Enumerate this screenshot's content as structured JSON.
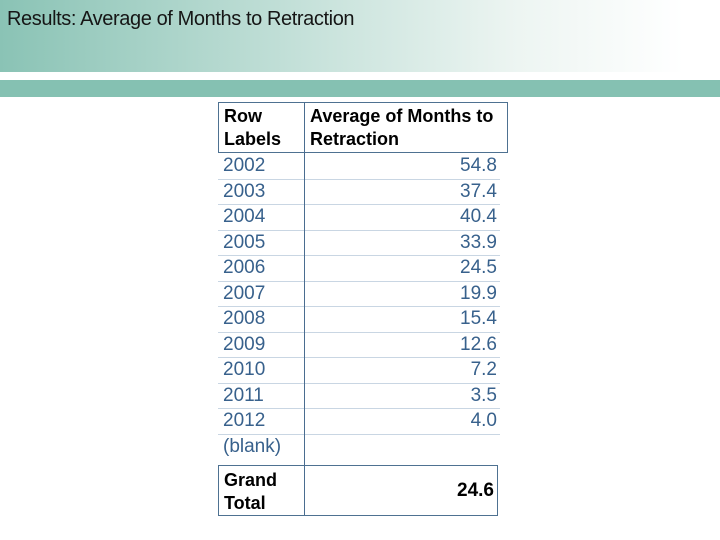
{
  "slide": {
    "title": "Results: Average of Months to Retraction"
  },
  "table": {
    "headers": [
      "Row Labels",
      "Average of Months to Retraction"
    ],
    "rows": [
      {
        "label": "2002",
        "value": "54.8"
      },
      {
        "label": "2003",
        "value": "37.4"
      },
      {
        "label": "2004",
        "value": "40.4"
      },
      {
        "label": "2005",
        "value": "33.9"
      },
      {
        "label": "2006",
        "value": "24.5"
      },
      {
        "label": "2007",
        "value": "19.9"
      },
      {
        "label": "2008",
        "value": "15.4"
      },
      {
        "label": "2009",
        "value": "12.6"
      },
      {
        "label": "2010",
        "value": "7.2"
      },
      {
        "label": "2011",
        "value": "3.5"
      },
      {
        "label": "2012",
        "value": "4.0"
      },
      {
        "label": "(blank)",
        "value": ""
      }
    ],
    "grand_total": {
      "label": "Grand Total",
      "value": "24.6"
    }
  },
  "chart_data": {
    "type": "table",
    "title": "Results: Average of Months to Retraction",
    "columns": [
      "Row Labels",
      "Average of Months to Retraction"
    ],
    "rows": [
      [
        "2002",
        54.8
      ],
      [
        "2003",
        37.4
      ],
      [
        "2004",
        40.4
      ],
      [
        "2005",
        33.9
      ],
      [
        "2006",
        24.5
      ],
      [
        "2007",
        19.9
      ],
      [
        "2008",
        15.4
      ],
      [
        "2009",
        12.6
      ],
      [
        "2010",
        7.2
      ],
      [
        "2011",
        3.5
      ],
      [
        "2012",
        4.0
      ],
      [
        "(blank)",
        null
      ]
    ],
    "grand_total": 24.6
  },
  "colors": {
    "accent_teal": "#85c1b2",
    "gradient_start": "#8ac3b5",
    "table_border": "#4e7191",
    "row_divider": "#c9d6e3",
    "row_text_blue": "#38618c"
  }
}
